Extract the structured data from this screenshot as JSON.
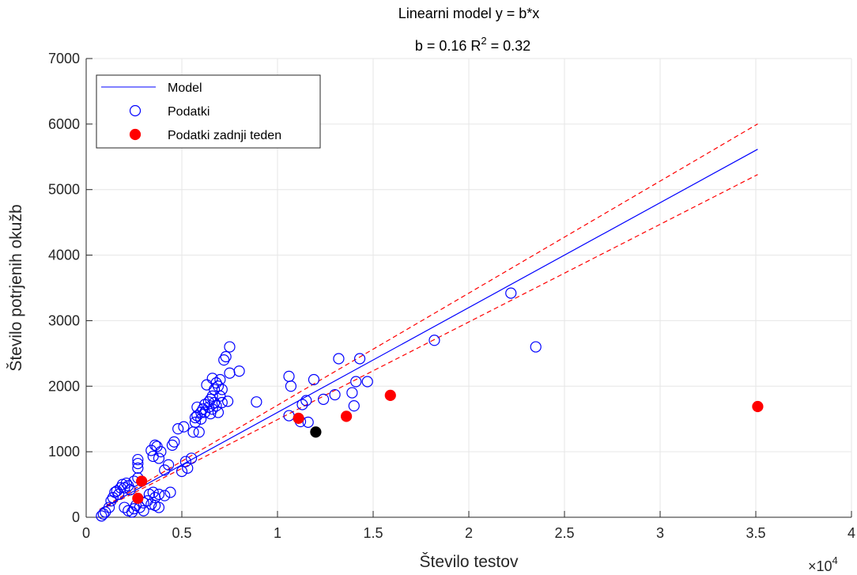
{
  "chart_data": {
    "type": "scatter",
    "title": "Linearni model y = b*x",
    "subtitle": {
      "b_text": "b = 0.16 R",
      "r2_sup": "2",
      "r2_value": " = 0.32"
    },
    "xlabel": "Število testov",
    "ylabel": "Število potrjenih okužb",
    "x_exponent": {
      "base": "×10",
      "power": "4"
    },
    "xlim": [
      0,
      4
    ],
    "ylim": [
      0,
      7000
    ],
    "x_ticks": [
      0,
      0.5,
      1,
      1.5,
      2,
      2.5,
      3,
      3.5,
      4
    ],
    "x_tick_labels": [
      "0",
      "0.5",
      "1",
      "1.5",
      "2",
      "2.5",
      "3",
      "3.5",
      "4"
    ],
    "y_ticks": [
      0,
      1000,
      2000,
      3000,
      4000,
      5000,
      6000,
      7000
    ],
    "y_tick_labels": [
      "0",
      "1000",
      "2000",
      "3000",
      "4000",
      "5000",
      "6000",
      "7000"
    ],
    "grid": true,
    "legend": {
      "placement": "top-left",
      "entries": [
        {
          "label": "Model",
          "kind": "line",
          "color": "#0000ff"
        },
        {
          "label": "Podatki",
          "kind": "open-circle",
          "color": "#0000ff"
        },
        {
          "label": "Podatki zadnji teden",
          "kind": "filled-circle",
          "color": "#ff0000"
        }
      ]
    },
    "model": {
      "slope": 0.16,
      "x_range": [
        0.07,
        3.51
      ],
      "color": "#0000ff",
      "ci_upper_slope": 0.171,
      "ci_lower_slope": 0.149,
      "ci_color": "#ff0000"
    },
    "series": [
      {
        "name": "Podatki",
        "marker": "open-circle",
        "color": "#0000ff",
        "points": [
          [
            0.08,
            20
          ],
          [
            0.09,
            50
          ],
          [
            0.1,
            80
          ],
          [
            0.12,
            150
          ],
          [
            0.13,
            250
          ],
          [
            0.14,
            300
          ],
          [
            0.15,
            380
          ],
          [
            0.16,
            400
          ],
          [
            0.17,
            350
          ],
          [
            0.18,
            450
          ],
          [
            0.19,
            500
          ],
          [
            0.2,
            450
          ],
          [
            0.21,
            520
          ],
          [
            0.22,
            480
          ],
          [
            0.23,
            420
          ],
          [
            0.25,
            550
          ],
          [
            0.27,
            600
          ],
          [
            0.2,
            150
          ],
          [
            0.22,
            100
          ],
          [
            0.24,
            80
          ],
          [
            0.25,
            130
          ],
          [
            0.26,
            180
          ],
          [
            0.28,
            150
          ],
          [
            0.3,
            220
          ],
          [
            0.32,
            250
          ],
          [
            0.33,
            350
          ],
          [
            0.35,
            380
          ],
          [
            0.36,
            300
          ],
          [
            0.38,
            350
          ],
          [
            0.41,
            330
          ],
          [
            0.44,
            380
          ],
          [
            0.34,
            200
          ],
          [
            0.36,
            180
          ],
          [
            0.38,
            150
          ],
          [
            0.3,
            100
          ],
          [
            0.27,
            750
          ],
          [
            0.27,
            820
          ],
          [
            0.27,
            880
          ],
          [
            0.34,
            1020
          ],
          [
            0.35,
            930
          ],
          [
            0.36,
            1100
          ],
          [
            0.37,
            1080
          ],
          [
            0.38,
            900
          ],
          [
            0.39,
            1000
          ],
          [
            0.41,
            720
          ],
          [
            0.43,
            800
          ],
          [
            0.45,
            1100
          ],
          [
            0.46,
            1150
          ],
          [
            0.48,
            1350
          ],
          [
            0.5,
            700
          ],
          [
            0.52,
            850
          ],
          [
            0.53,
            750
          ],
          [
            0.55,
            900
          ],
          [
            0.51,
            1380
          ],
          [
            0.56,
            1300
          ],
          [
            0.57,
            1450
          ],
          [
            0.57,
            1520
          ],
          [
            0.58,
            1550
          ],
          [
            0.58,
            1680
          ],
          [
            0.59,
            1300
          ],
          [
            0.6,
            1600
          ],
          [
            0.6,
            1500
          ],
          [
            0.61,
            1650
          ],
          [
            0.62,
            1720
          ],
          [
            0.62,
            1600
          ],
          [
            0.63,
            2020
          ],
          [
            0.64,
            1760
          ],
          [
            0.64,
            1680
          ],
          [
            0.65,
            1800
          ],
          [
            0.65,
            1580
          ],
          [
            0.66,
            1850
          ],
          [
            0.66,
            1650
          ],
          [
            0.66,
            2120
          ],
          [
            0.67,
            1950
          ],
          [
            0.67,
            1750
          ],
          [
            0.68,
            1700
          ],
          [
            0.68,
            2050
          ],
          [
            0.69,
            1600
          ],
          [
            0.69,
            2000
          ],
          [
            0.7,
            1850
          ],
          [
            0.7,
            2100
          ],
          [
            0.71,
            1750
          ],
          [
            0.71,
            1950
          ],
          [
            0.72,
            2400
          ],
          [
            0.73,
            2450
          ],
          [
            0.74,
            1770
          ],
          [
            0.75,
            2600
          ],
          [
            0.75,
            2200
          ],
          [
            0.8,
            2230
          ],
          [
            0.89,
            1760
          ],
          [
            1.06,
            1550
          ],
          [
            1.06,
            2150
          ],
          [
            1.07,
            2000
          ],
          [
            1.12,
            1460
          ],
          [
            1.13,
            1720
          ],
          [
            1.15,
            1780
          ],
          [
            1.16,
            1450
          ],
          [
            1.19,
            2100
          ],
          [
            1.24,
            1800
          ],
          [
            1.3,
            1870
          ],
          [
            1.32,
            2420
          ],
          [
            1.39,
            1900
          ],
          [
            1.4,
            1700
          ],
          [
            1.41,
            2070
          ],
          [
            1.43,
            2420
          ],
          [
            1.47,
            2070
          ],
          [
            1.82,
            2700
          ],
          [
            2.22,
            3420
          ],
          [
            2.35,
            2600
          ]
        ]
      },
      {
        "name": "Podatki zadnji teden",
        "marker": "filled-circle",
        "color": "#ff0000",
        "points": [
          [
            0.27,
            290
          ],
          [
            0.29,
            550
          ],
          [
            1.11,
            1510
          ],
          [
            1.36,
            1540
          ],
          [
            1.59,
            1860
          ],
          [
            3.51,
            1690
          ]
        ]
      },
      {
        "marker": "filled-circle",
        "color": "#000000",
        "points": [
          [
            1.2,
            1300
          ]
        ]
      }
    ]
  }
}
